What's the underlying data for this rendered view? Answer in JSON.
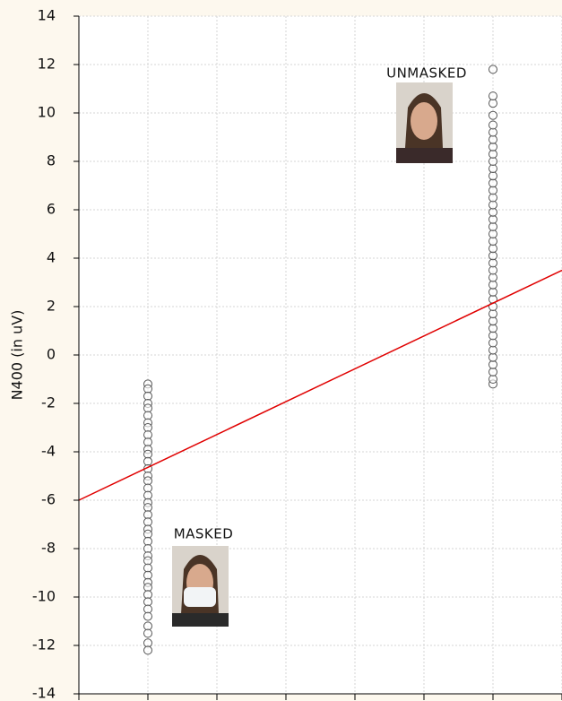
{
  "chart_data": {
    "type": "scatter",
    "ylabel": "N400 (in uV)",
    "ylim": [
      -14,
      14
    ],
    "yticks": [
      -14,
      -12,
      -10,
      -8,
      -6,
      -4,
      -2,
      0,
      2,
      4,
      6,
      8,
      10,
      12,
      14
    ],
    "xlim": [
      0,
      7
    ],
    "xticks": [
      0,
      1,
      2,
      3,
      4,
      5,
      6,
      7
    ],
    "grid": true,
    "annotations": [
      "MASKED",
      "UNMASKED"
    ],
    "series": [
      {
        "x": 1,
        "color": "#555555",
        "values": [
          -1.2,
          -1.4,
          -1.7,
          -2.0,
          -2.2,
          -2.5,
          -2.8,
          -3.0,
          -3.3,
          -3.6,
          -3.9,
          -4.1,
          -4.4,
          -4.7,
          -5.0,
          -5.2,
          -5.5,
          -5.8,
          -6.1,
          -6.3,
          -6.6,
          -6.9,
          -7.2,
          -7.4,
          -7.7,
          -8.0,
          -8.3,
          -8.5,
          -8.8,
          -9.1,
          -9.4,
          -9.6,
          -9.9,
          -10.2,
          -10.5,
          -10.8,
          -11.2,
          -11.5,
          -11.9,
          -12.2
        ]
      },
      {
        "x": 6,
        "color": "#555555",
        "values": [
          -1.2,
          -1.0,
          -0.7,
          -0.4,
          -0.1,
          0.2,
          0.5,
          0.8,
          1.1,
          1.4,
          1.7,
          2.0,
          2.3,
          2.6,
          2.9,
          3.2,
          3.5,
          3.8,
          4.1,
          4.4,
          4.7,
          5.0,
          5.3,
          5.6,
          5.9,
          6.2,
          6.5,
          6.8,
          7.1,
          7.4,
          7.7,
          8.0,
          8.3,
          8.6,
          8.9,
          9.2,
          9.5,
          9.9,
          10.4,
          10.7,
          11.8
        ]
      }
    ],
    "fit_line": {
      "color": "#e00000",
      "x": [
        0,
        7
      ],
      "values": [
        -6,
        3.5
      ]
    }
  }
}
